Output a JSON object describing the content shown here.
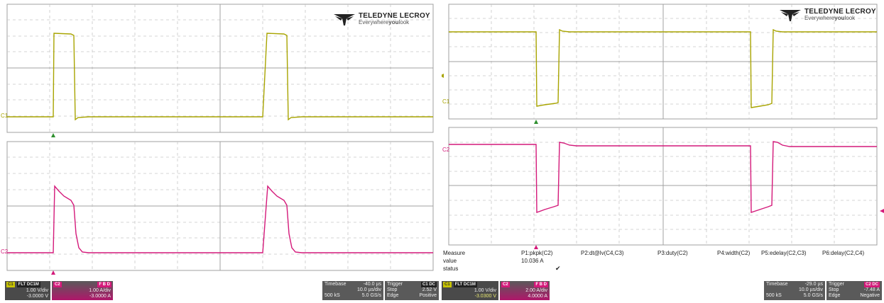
{
  "brand": {
    "name": "TELEDYNE LECROY",
    "tag_prefix": "Everywhere",
    "tag_bold": "you",
    "tag_suffix": "look"
  },
  "colors": {
    "c1": "#a8a400",
    "c2": "#d4197a",
    "grid": "#a0a0a0",
    "trigger": "#2f8f2f"
  },
  "left": {
    "c1_label": "C1",
    "c2_label": "C2",
    "channel1": {
      "name": "C1",
      "coupling": "FLT DC1M",
      "vdiv": "1.00 V/div",
      "offset": "-3.0000 V"
    },
    "channel2": {
      "name": "C2",
      "coupling": "F B D",
      "vdiv": "1.00 A/div",
      "offset": "-3.0000 A"
    },
    "timebase": {
      "label": "Timebase",
      "delay": "-40.0 µs",
      "tdiv": "10.0 µs/div",
      "sr_pts": "500 kS",
      "sr": "5.0 GS/s"
    },
    "trigger": {
      "label": "Trigger",
      "badge": "C1 DC",
      "mode": "Stop",
      "level": "2.52 V",
      "type": "Edge",
      "slope": "Positive"
    }
  },
  "right": {
    "c1_label": "C1",
    "c2_label": "C2",
    "measure": {
      "row_labels": [
        "Measure",
        "value",
        "status"
      ],
      "params": [
        "P1:pkpk(C2)",
        "P2:dt@lv(C4,C3)",
        "P3:duty(C2)",
        "P4:width(C2)",
        "P5:edelay(C2,C3)",
        "P6:delay(C2,C4)"
      ],
      "p1_value": "10.036 A",
      "p1_status": "✔"
    },
    "channel1": {
      "name": "C1",
      "coupling": "FLT DC1M",
      "vdiv": "1.00 V/div",
      "offset": "-3.0300 V"
    },
    "channel2": {
      "name": "C2",
      "coupling": "F B D",
      "vdiv": "2.00 A/div",
      "offset": "4.0000 A"
    },
    "timebase": {
      "label": "Timebase",
      "delay": "-29.0 µs",
      "tdiv": "10.0 µs/div",
      "sr_pts": "500 kS",
      "sr": "5.0 GS/s"
    },
    "trigger": {
      "label": "Trigger",
      "badge": "C2 DC",
      "mode": "Stop",
      "level": "-7.48 A",
      "type": "Edge",
      "slope": "Negative"
    }
  }
}
